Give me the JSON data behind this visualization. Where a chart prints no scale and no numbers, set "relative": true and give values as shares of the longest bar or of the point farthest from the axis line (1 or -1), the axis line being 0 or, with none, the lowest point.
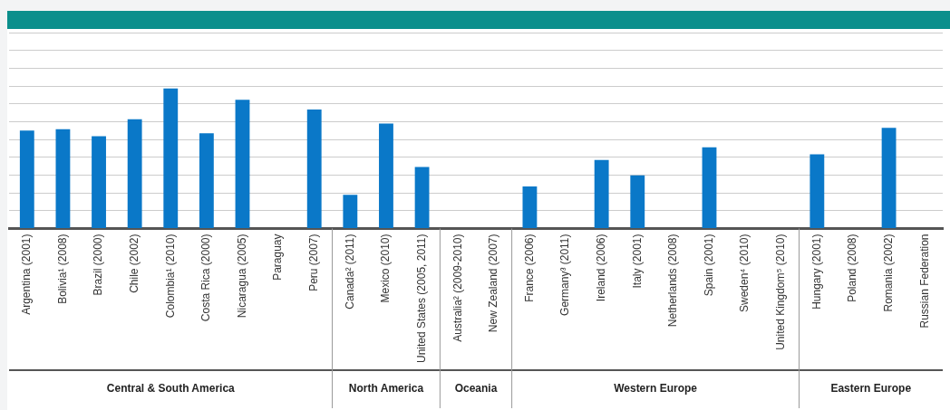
{
  "chart_data": {
    "type": "bar",
    "relative": true,
    "grid": "y",
    "color": "#0a78c8",
    "categories": [
      "Argentina (2001)",
      "Bolivia¹ (2008)",
      "Brazil (2000)",
      "Chile (2002)",
      "Colombia¹ (2010)",
      "Costa Rica (2000)",
      "Nicaragua (2005)",
      "Paraguay",
      "Peru (2007)",
      "Canada² (2011)",
      "Mexico (2010)",
      "United States (2005, 2011)",
      "Australia² (2009-2010)",
      "New Zealand (2007)",
      "France (2006)",
      "Germany³ (2011)",
      "Ireland (2006)",
      "Italy (2001)",
      "Netherlands (2008)",
      "Spain (2001)",
      "Sweden⁴ (2010)",
      "United Kingdom⁵ (2010)",
      "Hungary (2001)",
      "Poland (2008)",
      "Romania (2002)",
      "Russian Federation"
    ],
    "values": [
      0.7,
      0.71,
      0.66,
      0.78,
      1,
      0.68,
      0.92,
      null,
      0.85,
      0.24,
      0.75,
      0.44,
      null,
      null,
      0.3,
      null,
      0.49,
      0.38,
      null,
      0.58,
      null,
      null,
      0.53,
      null,
      0.72,
      null
    ],
    "annotations": [
      "Central & South America",
      "North America",
      "Oceania",
      "Western Europe",
      "Eastern Europe"
    ]
  }
}
